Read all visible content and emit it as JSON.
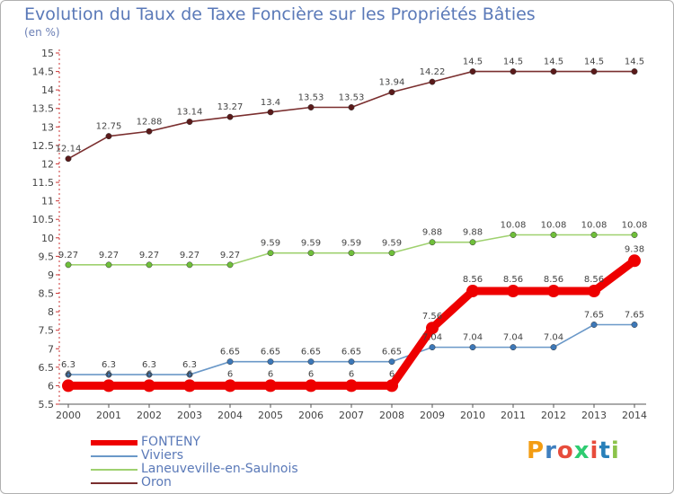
{
  "header": {
    "title": "Evolution du Taux de Taxe Foncière sur les Propriétés Bâties",
    "unit": "(en %)"
  },
  "brand": {
    "letters": [
      "P",
      "r",
      "o",
      "x",
      "i",
      "t",
      "i"
    ],
    "colors": [
      "#f39c12",
      "#3f7fbf",
      "#e74c3c",
      "#2ecc71",
      "#e74c3c",
      "#2980b9",
      "#8bc34a"
    ]
  },
  "chart_data": {
    "type": "line",
    "title": "Evolution du Taux de Taxe Foncière sur les Propriétés Bâties",
    "ylabel": "(en %)",
    "xlabel": "",
    "x": [
      "2000",
      "2001",
      "2002",
      "2003",
      "2004",
      "2005",
      "2006",
      "2007",
      "2008",
      "2009",
      "2010",
      "2011",
      "2012",
      "2013",
      "2014"
    ],
    "ylim": [
      5.5,
      15
    ],
    "yticks": [
      "5.5",
      "6",
      "6.5",
      "7",
      "7.5",
      "8",
      "8.5",
      "9",
      "9.5",
      "10",
      "10.5",
      "11",
      "11.5",
      "12",
      "12.5",
      "13",
      "13.5",
      "14",
      "14.5",
      "15"
    ],
    "grid": false,
    "legend_position": "bottom-left",
    "series": [
      {
        "name": "Oron",
        "color": "#7a2e2e",
        "marker": "#5a1a1a",
        "values": [
          12.14,
          12.75,
          12.88,
          13.14,
          13.27,
          13.4,
          13.53,
          13.53,
          13.94,
          14.22,
          14.5,
          14.5,
          14.5,
          14.5,
          14.5
        ],
        "labels": [
          "12.14",
          "12.75",
          "12.88",
          "13.14",
          "13.27",
          "13.4",
          "13.53",
          "13.53",
          "13.94",
          "14.22",
          "14.5",
          "14.5",
          "14.5",
          "14.5",
          "14.5"
        ]
      },
      {
        "name": "Laneuveville-en-Saulnois",
        "color": "#9fd16f",
        "marker": "#6fbf3a",
        "values": [
          9.27,
          9.27,
          9.27,
          9.27,
          9.27,
          9.59,
          9.59,
          9.59,
          9.59,
          9.88,
          9.88,
          10.08,
          10.08,
          10.08,
          10.08
        ],
        "labels": [
          "9.27",
          "9.27",
          "9.27",
          "9.27",
          "9.27",
          "9.59",
          "9.59",
          "9.59",
          "9.59",
          "9.88",
          "9.88",
          "10.08",
          "10.08",
          "10.08",
          "10.08"
        ]
      },
      {
        "name": "Viviers",
        "color": "#6a98c8",
        "marker": "#3d78b8",
        "values": [
          6.3,
          6.3,
          6.3,
          6.3,
          6.65,
          6.65,
          6.65,
          6.65,
          6.65,
          7.04,
          7.04,
          7.04,
          7.04,
          7.65,
          7.65
        ],
        "labels": [
          "6.3",
          "6.3",
          "6.3",
          "6.3",
          "6.65",
          "6.65",
          "6.65",
          "6.65",
          "6.65",
          "7.04",
          "7.04",
          "7.04",
          "7.04",
          "7.65",
          "7.65"
        ]
      },
      {
        "name": "FONTENY",
        "color": "#ee0000",
        "marker": "#ee0000",
        "values": [
          6,
          6,
          6,
          6,
          6,
          6,
          6,
          6,
          6,
          7.56,
          8.56,
          8.56,
          8.56,
          8.56,
          9.38
        ],
        "labels": [
          "6",
          "6",
          "6",
          "6",
          "6",
          "6",
          "6",
          "6",
          "6",
          "7.56",
          "8.56",
          "8.56",
          "8.56",
          "8.56",
          "9.38"
        ]
      }
    ],
    "legend": [
      "FONTENY",
      "Viviers",
      "Laneuveville-en-Saulnois",
      "Oron"
    ]
  }
}
